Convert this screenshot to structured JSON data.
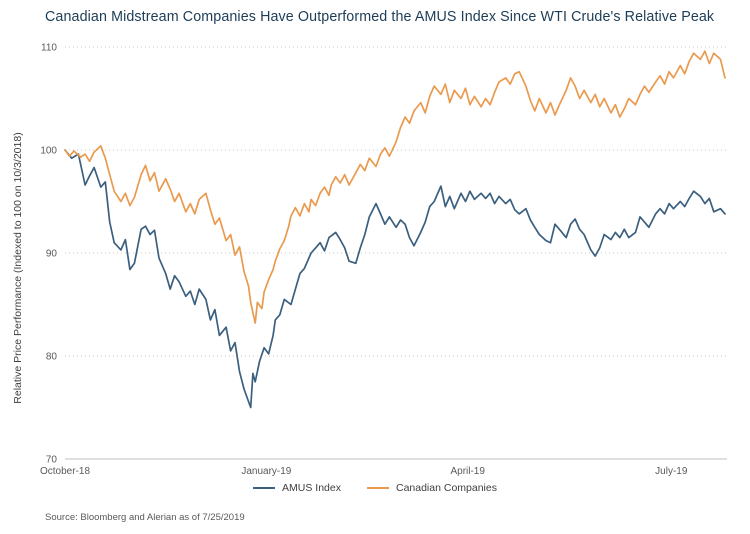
{
  "source_text": "Source: Bloomberg and Alerian as of 7/25/2019",
  "colors": {
    "title_text": "#1d3d57",
    "amus_line": "#3b5f7e",
    "canadian_line": "#ea9a4e",
    "gridline": "#c9c9c9",
    "axis_line": "#bfbfbf",
    "tick_text": "#595959"
  },
  "chart_data": {
    "type": "line",
    "title": "Canadian Midstream Companies Have Outperformed the AMUS Index Since WTI Crude's Relative Peak",
    "ylabel": "Relative Price Performance (Indexed to 100 on 10/3/2018)",
    "xlabel": "",
    "ylim": [
      70,
      110
    ],
    "y_ticks": [
      70,
      80,
      90,
      100,
      110
    ],
    "x_unit": "days since 10/3/2018",
    "xlim": [
      0,
      295
    ],
    "x_ticks": [
      {
        "label": "October-18",
        "day": 0
      },
      {
        "label": "January-19",
        "day": 90
      },
      {
        "label": "April-19",
        "day": 180
      },
      {
        "label": "July-19",
        "day": 271
      }
    ],
    "grid": "horizontal-dotted",
    "legend_position": "bottom-center",
    "series": [
      {
        "name": "AMUS Index",
        "color": "#3b5f7e",
        "points": [
          [
            0,
            100
          ],
          [
            3,
            99.2
          ],
          [
            6,
            99.6
          ],
          [
            9,
            96.6
          ],
          [
            11,
            97.5
          ],
          [
            13,
            98.3
          ],
          [
            16,
            96.4
          ],
          [
            18,
            96.9
          ],
          [
            20,
            93
          ],
          [
            22,
            91
          ],
          [
            25,
            90.3
          ],
          [
            27,
            91.3
          ],
          [
            29,
            88.4
          ],
          [
            31,
            89
          ],
          [
            34,
            92.3
          ],
          [
            36,
            92.6
          ],
          [
            38,
            91.8
          ],
          [
            40,
            92.2
          ],
          [
            42,
            89.5
          ],
          [
            45,
            88
          ],
          [
            47,
            86.5
          ],
          [
            49,
            87.8
          ],
          [
            51,
            87.2
          ],
          [
            54,
            85.8
          ],
          [
            56,
            86.3
          ],
          [
            58,
            85
          ],
          [
            60,
            86.5
          ],
          [
            63,
            85.5
          ],
          [
            65,
            83.5
          ],
          [
            67,
            84.5
          ],
          [
            69,
            82
          ],
          [
            72,
            82.8
          ],
          [
            74,
            80.5
          ],
          [
            76,
            81.3
          ],
          [
            78,
            78.5
          ],
          [
            80,
            76.8
          ],
          [
            83,
            75
          ],
          [
            84,
            78.3
          ],
          [
            85,
            77.5
          ],
          [
            87,
            79.5
          ],
          [
            89,
            80.8
          ],
          [
            91,
            80.2
          ],
          [
            93,
            82
          ],
          [
            94,
            83.5
          ],
          [
            96,
            84
          ],
          [
            98,
            85.5
          ],
          [
            101,
            85
          ],
          [
            103,
            86.5
          ],
          [
            105,
            88
          ],
          [
            107,
            88.5
          ],
          [
            110,
            90
          ],
          [
            112,
            90.5
          ],
          [
            114,
            91
          ],
          [
            116,
            90.2
          ],
          [
            118,
            91.5
          ],
          [
            121,
            92
          ],
          [
            123,
            91.3
          ],
          [
            125,
            90.5
          ],
          [
            127,
            89.2
          ],
          [
            130,
            89
          ],
          [
            132,
            90.5
          ],
          [
            134,
            91.8
          ],
          [
            136,
            93.5
          ],
          [
            139,
            94.8
          ],
          [
            141,
            93.8
          ],
          [
            143,
            92.8
          ],
          [
            145,
            93.5
          ],
          [
            148,
            92.5
          ],
          [
            150,
            93.2
          ],
          [
            152,
            92.8
          ],
          [
            154,
            91.5
          ],
          [
            156,
            90.7
          ],
          [
            159,
            92
          ],
          [
            161,
            93
          ],
          [
            163,
            94.5
          ],
          [
            165,
            95
          ],
          [
            168,
            96.5
          ],
          [
            170,
            94.5
          ],
          [
            172,
            95.5
          ],
          [
            174,
            94.3
          ],
          [
            177,
            95.8
          ],
          [
            179,
            95
          ],
          [
            181,
            96
          ],
          [
            183,
            95.2
          ],
          [
            186,
            95.8
          ],
          [
            188,
            95.3
          ],
          [
            190,
            95.8
          ],
          [
            192,
            94.8
          ],
          [
            194,
            95.5
          ],
          [
            197,
            94.8
          ],
          [
            199,
            95.2
          ],
          [
            201,
            94.2
          ],
          [
            203,
            93.8
          ],
          [
            206,
            94.3
          ],
          [
            208,
            93.2
          ],
          [
            210,
            92.5
          ],
          [
            212,
            91.8
          ],
          [
            215,
            91.2
          ],
          [
            217,
            91
          ],
          [
            219,
            92.8
          ],
          [
            221,
            92.3
          ],
          [
            224,
            91.5
          ],
          [
            226,
            92.8
          ],
          [
            228,
            93.3
          ],
          [
            230,
            92.3
          ],
          [
            232,
            91.8
          ],
          [
            235,
            90.3
          ],
          [
            237,
            89.7
          ],
          [
            239,
            90.5
          ],
          [
            241,
            91.8
          ],
          [
            244,
            91.3
          ],
          [
            246,
            92
          ],
          [
            248,
            91.5
          ],
          [
            250,
            92.3
          ],
          [
            252,
            91.5
          ],
          [
            255,
            92
          ],
          [
            257,
            93.5
          ],
          [
            259,
            93
          ],
          [
            261,
            92.5
          ],
          [
            264,
            93.8
          ],
          [
            266,
            94.3
          ],
          [
            268,
            93.8
          ],
          [
            270,
            94.8
          ],
          [
            272,
            94.3
          ],
          [
            275,
            95
          ],
          [
            277,
            94.5
          ],
          [
            279,
            95.3
          ],
          [
            281,
            96
          ],
          [
            284,
            95.5
          ],
          [
            286,
            94.8
          ],
          [
            288,
            95.3
          ],
          [
            290,
            94
          ],
          [
            293,
            94.3
          ],
          [
            295,
            93.8
          ]
        ]
      },
      {
        "name": "Canadian Companies",
        "color": "#ea9a4e",
        "points": [
          [
            0,
            100
          ],
          [
            2,
            99.4
          ],
          [
            4,
            99.9
          ],
          [
            7,
            99.3
          ],
          [
            9,
            99.6
          ],
          [
            11,
            98.9
          ],
          [
            13,
            99.8
          ],
          [
            16,
            100.4
          ],
          [
            18,
            99.2
          ],
          [
            20,
            97.6
          ],
          [
            22,
            96
          ],
          [
            25,
            95
          ],
          [
            27,
            95.8
          ],
          [
            29,
            94.6
          ],
          [
            31,
            95.4
          ],
          [
            34,
            97.6
          ],
          [
            36,
            98.5
          ],
          [
            38,
            97
          ],
          [
            40,
            97.8
          ],
          [
            42,
            96
          ],
          [
            45,
            97.2
          ],
          [
            47,
            96.2
          ],
          [
            49,
            95
          ],
          [
            51,
            95.8
          ],
          [
            54,
            94
          ],
          [
            56,
            94.8
          ],
          [
            58,
            93.8
          ],
          [
            60,
            95.2
          ],
          [
            63,
            95.8
          ],
          [
            65,
            94.2
          ],
          [
            67,
            92.8
          ],
          [
            69,
            93.4
          ],
          [
            72,
            91.2
          ],
          [
            74,
            91.8
          ],
          [
            76,
            89.8
          ],
          [
            78,
            90.6
          ],
          [
            80,
            88.2
          ],
          [
            82,
            86.8
          ],
          [
            83,
            85.2
          ],
          [
            84,
            84.2
          ],
          [
            85,
            83.2
          ],
          [
            86,
            85.2
          ],
          [
            88,
            84.6
          ],
          [
            89,
            86.2
          ],
          [
            91,
            87.4
          ],
          [
            93,
            88.4
          ],
          [
            94,
            89.2
          ],
          [
            96,
            90.4
          ],
          [
            98,
            91.2
          ],
          [
            100,
            92.6
          ],
          [
            101,
            93.6
          ],
          [
            103,
            94.4
          ],
          [
            105,
            93.6
          ],
          [
            107,
            94.8
          ],
          [
            109,
            94
          ],
          [
            110,
            95.2
          ],
          [
            112,
            94.6
          ],
          [
            114,
            95.8
          ],
          [
            116,
            96.4
          ],
          [
            118,
            95.6
          ],
          [
            119,
            96.6
          ],
          [
            121,
            97.4
          ],
          [
            123,
            96.8
          ],
          [
            125,
            97.6
          ],
          [
            127,
            96.6
          ],
          [
            130,
            97.8
          ],
          [
            132,
            98.6
          ],
          [
            134,
            98
          ],
          [
            136,
            99.2
          ],
          [
            139,
            98.4
          ],
          [
            141,
            99.6
          ],
          [
            143,
            100.2
          ],
          [
            145,
            99.4
          ],
          [
            148,
            100.8
          ],
          [
            150,
            102.2
          ],
          [
            152,
            103.2
          ],
          [
            154,
            102.6
          ],
          [
            156,
            103.8
          ],
          [
            159,
            104.6
          ],
          [
            161,
            103.6
          ],
          [
            163,
            105.2
          ],
          [
            165,
            106.2
          ],
          [
            168,
            105.4
          ],
          [
            170,
            106.4
          ],
          [
            172,
            104.6
          ],
          [
            174,
            105.8
          ],
          [
            177,
            105
          ],
          [
            179,
            106
          ],
          [
            181,
            104.4
          ],
          [
            183,
            105.2
          ],
          [
            186,
            104.2
          ],
          [
            188,
            105
          ],
          [
            190,
            104.4
          ],
          [
            192,
            105.6
          ],
          [
            194,
            106.6
          ],
          [
            197,
            107
          ],
          [
            199,
            106.4
          ],
          [
            201,
            107.4
          ],
          [
            203,
            107.6
          ],
          [
            206,
            106.2
          ],
          [
            208,
            104.8
          ],
          [
            210,
            103.8
          ],
          [
            212,
            105
          ],
          [
            215,
            103.6
          ],
          [
            217,
            104.6
          ],
          [
            219,
            103.4
          ],
          [
            221,
            104.4
          ],
          [
            224,
            105.8
          ],
          [
            226,
            107
          ],
          [
            228,
            106.2
          ],
          [
            230,
            105
          ],
          [
            232,
            105.8
          ],
          [
            235,
            104.6
          ],
          [
            237,
            105.4
          ],
          [
            239,
            104.2
          ],
          [
            241,
            105
          ],
          [
            244,
            103.6
          ],
          [
            246,
            104.4
          ],
          [
            248,
            103.2
          ],
          [
            250,
            104
          ],
          [
            252,
            105
          ],
          [
            255,
            104.4
          ],
          [
            257,
            105.4
          ],
          [
            259,
            106.2
          ],
          [
            261,
            105.6
          ],
          [
            264,
            106.6
          ],
          [
            266,
            107.2
          ],
          [
            268,
            106.4
          ],
          [
            270,
            107.6
          ],
          [
            272,
            107
          ],
          [
            275,
            108.2
          ],
          [
            277,
            107.4
          ],
          [
            279,
            108.6
          ],
          [
            281,
            109.4
          ],
          [
            284,
            108.8
          ],
          [
            286,
            109.6
          ],
          [
            288,
            108.4
          ],
          [
            290,
            109.4
          ],
          [
            293,
            108.8
          ],
          [
            295,
            107
          ]
        ]
      }
    ]
  }
}
